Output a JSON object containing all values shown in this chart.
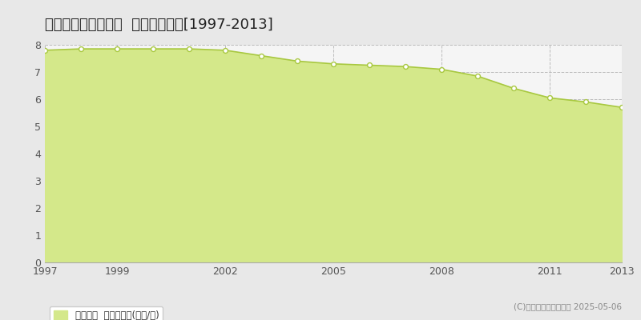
{
  "title": "熊毛郡田布施町麻郷  基準地価推移[1997-2013]",
  "years": [
    1997,
    1998,
    1999,
    2000,
    2001,
    2002,
    2003,
    2004,
    2005,
    2006,
    2007,
    2008,
    2009,
    2010,
    2011,
    2012,
    2013
  ],
  "values": [
    7.8,
    7.85,
    7.85,
    7.85,
    7.85,
    7.8,
    7.6,
    7.4,
    7.3,
    7.25,
    7.2,
    7.1,
    6.85,
    6.4,
    6.05,
    5.9,
    5.7
  ],
  "ylim": [
    0,
    8
  ],
  "yticks": [
    0,
    1,
    2,
    3,
    4,
    5,
    6,
    7,
    8
  ],
  "xticks": [
    1997,
    1999,
    2002,
    2005,
    2008,
    2011,
    2013
  ],
  "line_color": "#a8c840",
  "fill_color": "#d4e88a",
  "marker_color": "white",
  "marker_edge_color": "#a8c840",
  "fig_bg_color": "#e8e8e8",
  "plot_bg_color": "#f5f5f5",
  "grid_color": "#bbbbbb",
  "title_fontsize": 13,
  "axis_label_color": "#555555",
  "legend_label": "基準地価  平均坪単価(万円/坪)",
  "copyright_text": "(C)土地価格ドットコム 2025-05-06"
}
